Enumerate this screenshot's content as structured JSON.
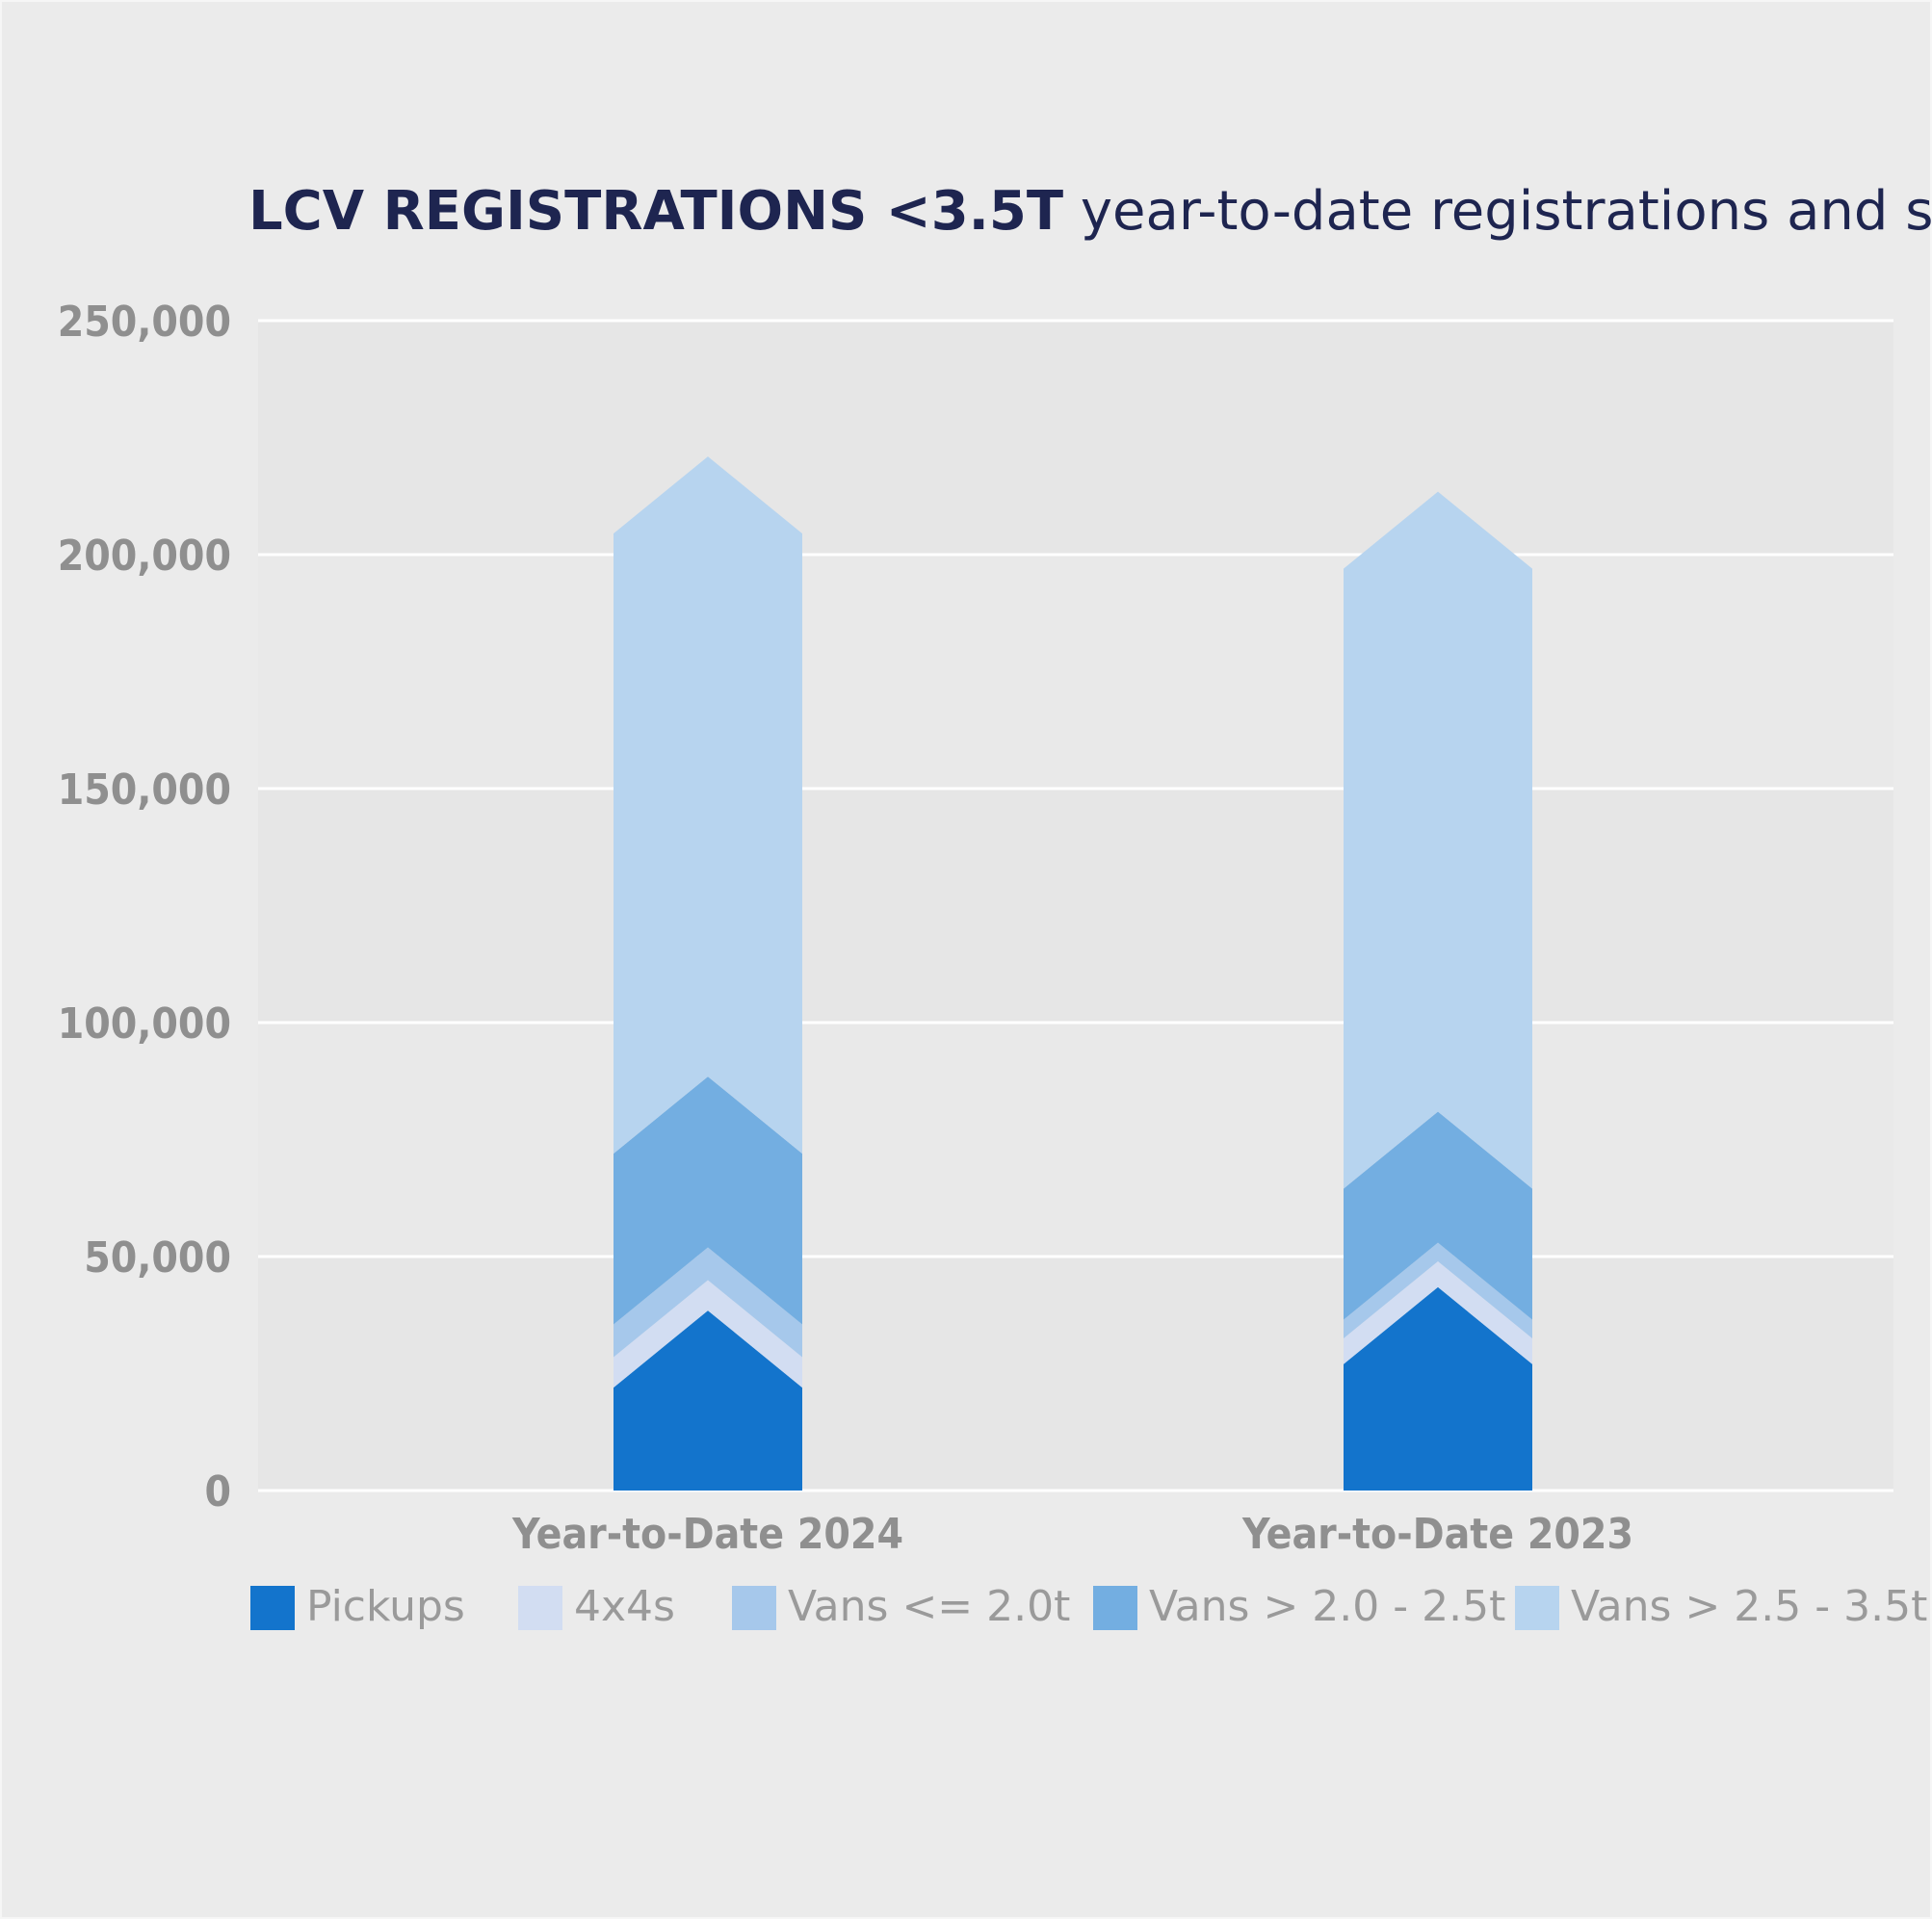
{
  "chart_data": {
    "type": "bar",
    "title_bold": "LCV REGISTRATIONS <3.5T",
    "title_rest": " year-to-date registrations and split",
    "xlabel": "",
    "ylabel": "",
    "ylim": [
      0,
      250000
    ],
    "y_ticks": [
      0,
      50000,
      100000,
      150000,
      200000,
      250000
    ],
    "y_tick_labels": [
      "0",
      "50,000",
      "100,000",
      "150,000",
      "200,000",
      "250,000"
    ],
    "categories": [
      "Year-to-Date 2024",
      "Year-to-Date 2023"
    ],
    "stacked": true,
    "grid": true,
    "legend_position": "bottom",
    "series": [
      {
        "name": "Pickups",
        "color": "#1374cc",
        "values": [
          22000,
          27000
        ]
      },
      {
        "name": "4x4s",
        "color": "#d2ddf2",
        "values": [
          6500,
          5500
        ]
      },
      {
        "name": "Vans <= 2.0t",
        "color": "#a6c8eb",
        "values": [
          7000,
          4000
        ]
      },
      {
        "name": "Vans > 2.0 - 2.5t",
        "color": "#73aee1",
        "values": [
          36500,
          28000
        ]
      },
      {
        "name": "Vans > 2.5 - 3.5t",
        "color": "#b7d4ef",
        "values": [
          132500,
          132500
        ]
      }
    ]
  }
}
